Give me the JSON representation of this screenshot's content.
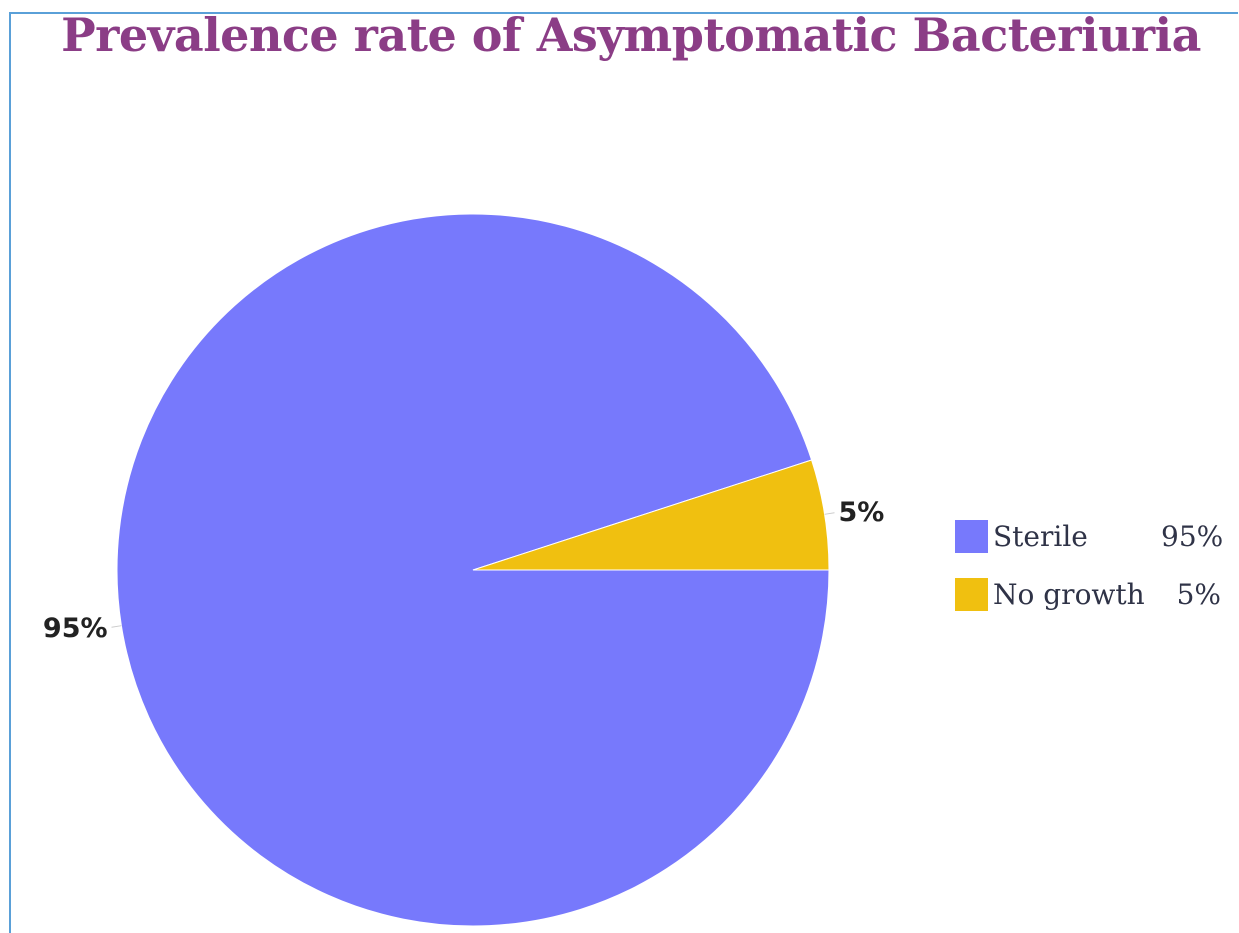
{
  "chart_data": {
    "type": "pie",
    "title": "Prevalence rate of Asymptomatic Bacteriuria",
    "categories": [
      "Sterile",
      "No growth"
    ],
    "values": [
      95,
      5
    ],
    "slice_labels": [
      "95%",
      "5%"
    ],
    "legend_values": [
      "95%",
      "5%"
    ],
    "colors": [
      "#7779fc",
      "#f0c010"
    ],
    "legend_position": "right"
  },
  "colors": {
    "title": "#8b3d86",
    "frame": "#5aa0d8",
    "label": "#222222"
  }
}
